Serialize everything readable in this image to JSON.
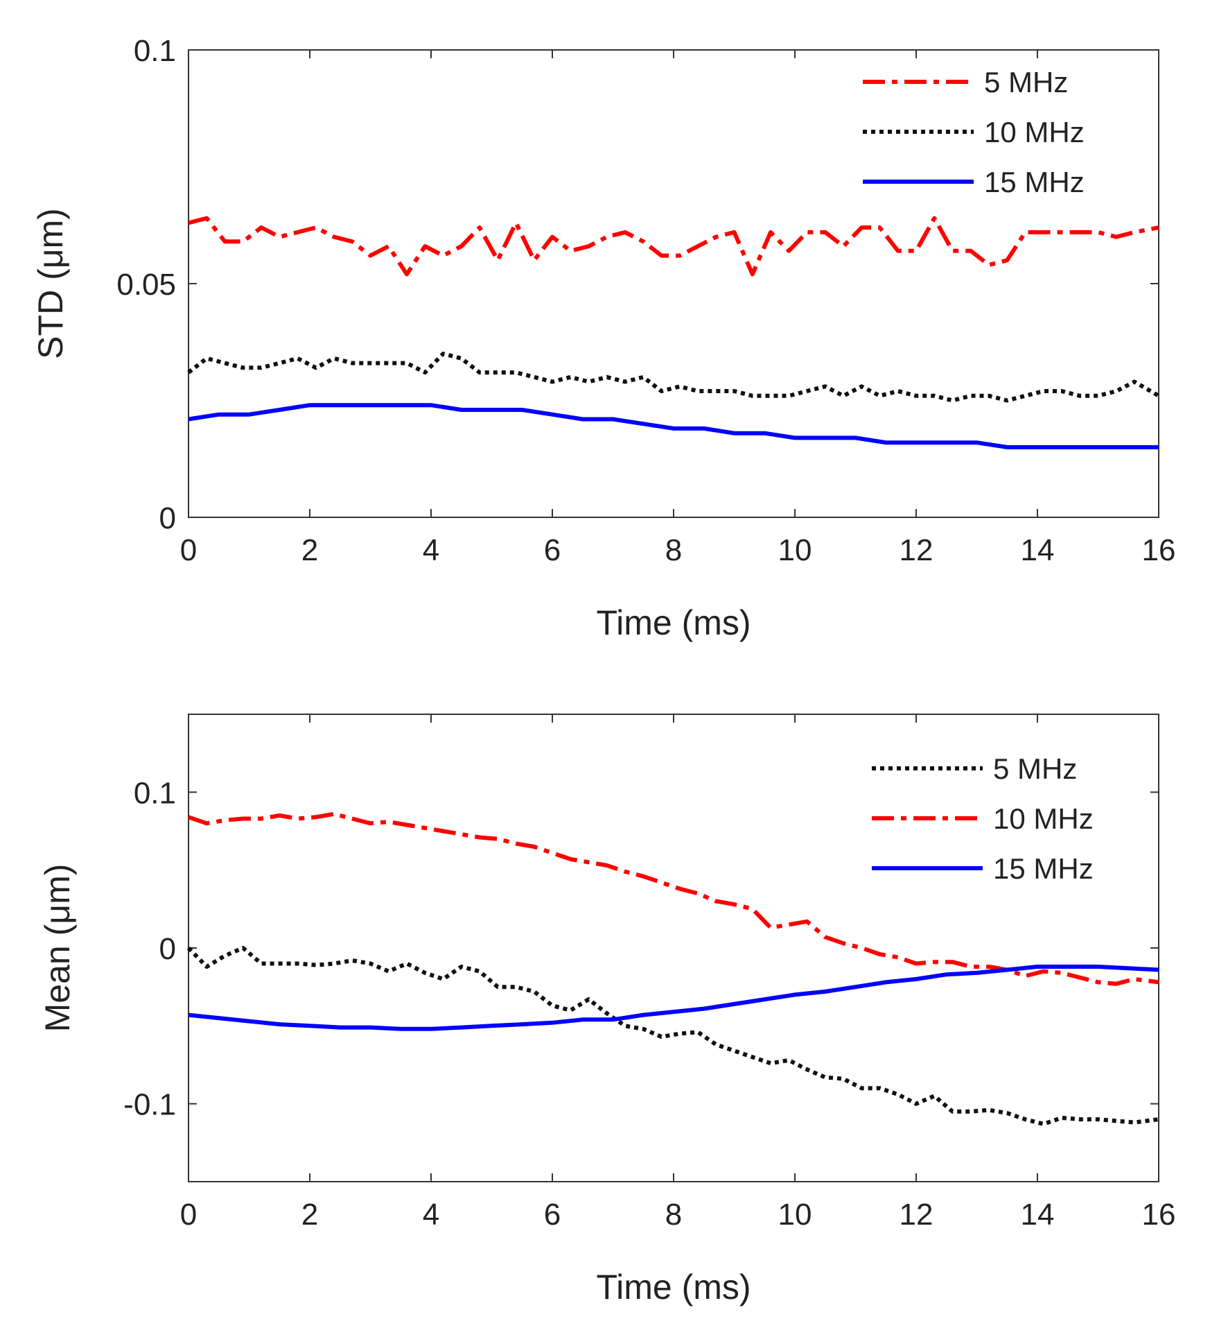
{
  "chart_data": [
    {
      "type": "line",
      "xlabel": "Time (ms)",
      "ylabel": "STD (μm)",
      "xlim": [
        0,
        16
      ],
      "ylim": [
        0,
        0.1
      ],
      "xticks": [
        "0",
        "2",
        "4",
        "6",
        "8",
        "10",
        "12",
        "14",
        "16"
      ],
      "yticks": [
        "0",
        "0.05",
        "0.1"
      ],
      "legend_position": "top-right",
      "series": [
        {
          "name": "5 MHz",
          "color": "#ff0000",
          "style": "dash-dot",
          "x": [
            0,
            0.3,
            0.6,
            0.9,
            1.2,
            1.5,
            1.8,
            2.1,
            2.4,
            2.7,
            3.0,
            3.3,
            3.6,
            3.9,
            4.2,
            4.5,
            4.8,
            5.1,
            5.4,
            5.7,
            6.0,
            6.3,
            6.6,
            6.9,
            7.2,
            7.5,
            7.8,
            8.1,
            8.4,
            8.7,
            9.0,
            9.3,
            9.6,
            9.9,
            10.2,
            10.5,
            10.8,
            11.1,
            11.4,
            11.7,
            12.0,
            12.3,
            12.6,
            12.9,
            13.2,
            13.5,
            13.8,
            14.1,
            14.4,
            14.7,
            15.0,
            15.3,
            15.6,
            16.0
          ],
          "y": [
            0.063,
            0.064,
            0.059,
            0.059,
            0.062,
            0.06,
            0.061,
            0.062,
            0.06,
            0.059,
            0.056,
            0.058,
            0.052,
            0.058,
            0.056,
            0.058,
            0.062,
            0.055,
            0.063,
            0.055,
            0.06,
            0.057,
            0.058,
            0.06,
            0.061,
            0.059,
            0.056,
            0.056,
            0.058,
            0.06,
            0.061,
            0.052,
            0.061,
            0.057,
            0.061,
            0.061,
            0.058,
            0.062,
            0.062,
            0.057,
            0.057,
            0.064,
            0.057,
            0.057,
            0.054,
            0.055,
            0.061,
            0.061,
            0.061,
            0.061,
            0.061,
            0.06,
            0.061,
            0.062
          ]
        },
        {
          "name": "10 MHz",
          "color": "#111111",
          "style": "dotted",
          "x": [
            0,
            0.3,
            0.6,
            0.9,
            1.2,
            1.5,
            1.8,
            2.1,
            2.4,
            2.7,
            3.0,
            3.3,
            3.6,
            3.9,
            4.2,
            4.5,
            4.8,
            5.1,
            5.4,
            5.7,
            6.0,
            6.3,
            6.6,
            6.9,
            7.2,
            7.5,
            7.8,
            8.1,
            8.4,
            8.7,
            9.0,
            9.3,
            9.6,
            9.9,
            10.2,
            10.5,
            10.8,
            11.1,
            11.4,
            11.7,
            12.0,
            12.3,
            12.6,
            12.9,
            13.2,
            13.5,
            13.8,
            14.1,
            14.4,
            14.7,
            15.0,
            15.3,
            15.6,
            16.0
          ],
          "y": [
            0.031,
            0.034,
            0.033,
            0.032,
            0.032,
            0.033,
            0.034,
            0.032,
            0.034,
            0.033,
            0.033,
            0.033,
            0.033,
            0.031,
            0.035,
            0.034,
            0.031,
            0.031,
            0.031,
            0.03,
            0.029,
            0.03,
            0.029,
            0.03,
            0.029,
            0.03,
            0.027,
            0.028,
            0.027,
            0.027,
            0.027,
            0.026,
            0.026,
            0.026,
            0.027,
            0.028,
            0.026,
            0.028,
            0.026,
            0.027,
            0.026,
            0.026,
            0.025,
            0.026,
            0.026,
            0.025,
            0.026,
            0.027,
            0.027,
            0.026,
            0.026,
            0.027,
            0.029,
            0.026
          ]
        },
        {
          "name": "15 MHz",
          "color": "#0000ff",
          "style": "solid",
          "x": [
            0,
            0.5,
            1.0,
            1.5,
            2.0,
            2.5,
            3.0,
            3.5,
            4.0,
            4.5,
            5.0,
            5.5,
            6.0,
            6.5,
            7.0,
            7.5,
            8.0,
            8.5,
            9.0,
            9.5,
            10.0,
            10.5,
            11.0,
            11.5,
            12.0,
            12.5,
            13.0,
            13.5,
            14.0,
            14.5,
            15.0,
            15.5,
            16.0
          ],
          "y": [
            0.021,
            0.022,
            0.022,
            0.023,
            0.024,
            0.024,
            0.024,
            0.024,
            0.024,
            0.023,
            0.023,
            0.023,
            0.022,
            0.021,
            0.021,
            0.02,
            0.019,
            0.019,
            0.018,
            0.018,
            0.017,
            0.017,
            0.017,
            0.016,
            0.016,
            0.016,
            0.016,
            0.015,
            0.015,
            0.015,
            0.015,
            0.015,
            0.015
          ]
        }
      ]
    },
    {
      "type": "line",
      "xlabel": "Time (ms)",
      "ylabel": "Mean (μm)",
      "xlim": [
        0,
        16
      ],
      "ylim": [
        -0.15,
        0.15
      ],
      "xticks": [
        "0",
        "2",
        "4",
        "6",
        "8",
        "10",
        "12",
        "14",
        "16"
      ],
      "yticks": [
        "-0.1",
        "0",
        "0.1"
      ],
      "legend_position": "top-right",
      "series": [
        {
          "name": "5 MHz",
          "color": "#111111",
          "style": "dotted",
          "x": [
            0,
            0.3,
            0.6,
            0.9,
            1.2,
            1.5,
            1.8,
            2.1,
            2.4,
            2.7,
            3.0,
            3.3,
            3.6,
            3.9,
            4.2,
            4.5,
            4.8,
            5.1,
            5.4,
            5.7,
            6.0,
            6.3,
            6.6,
            6.9,
            7.2,
            7.5,
            7.8,
            8.1,
            8.4,
            8.7,
            9.0,
            9.3,
            9.6,
            9.9,
            10.2,
            10.5,
            10.8,
            11.1,
            11.4,
            11.7,
            12.0,
            12.3,
            12.6,
            12.9,
            13.2,
            13.5,
            13.8,
            14.1,
            14.4,
            14.7,
            15.0,
            15.3,
            15.6,
            16.0
          ],
          "y": [
            0.0,
            -0.012,
            -0.005,
            0.0,
            -0.01,
            -0.01,
            -0.01,
            -0.011,
            -0.01,
            -0.008,
            -0.01,
            -0.015,
            -0.01,
            -0.016,
            -0.02,
            -0.012,
            -0.015,
            -0.025,
            -0.025,
            -0.028,
            -0.037,
            -0.04,
            -0.033,
            -0.042,
            -0.05,
            -0.052,
            -0.057,
            -0.055,
            -0.054,
            -0.062,
            -0.066,
            -0.07,
            -0.074,
            -0.072,
            -0.078,
            -0.083,
            -0.084,
            -0.09,
            -0.09,
            -0.094,
            -0.1,
            -0.095,
            -0.105,
            -0.105,
            -0.104,
            -0.106,
            -0.11,
            -0.113,
            -0.109,
            -0.11,
            -0.11,
            -0.111,
            -0.112,
            -0.11
          ]
        },
        {
          "name": "10 MHz",
          "color": "#ff0000",
          "style": "dash-dot",
          "x": [
            0,
            0.3,
            0.6,
            0.9,
            1.2,
            1.5,
            1.8,
            2.1,
            2.4,
            2.7,
            3.0,
            3.3,
            3.6,
            3.9,
            4.2,
            4.5,
            4.8,
            5.1,
            5.4,
            5.7,
            6.0,
            6.3,
            6.6,
            6.9,
            7.2,
            7.5,
            7.8,
            8.1,
            8.4,
            8.7,
            9.0,
            9.3,
            9.6,
            9.9,
            10.2,
            10.5,
            10.8,
            11.1,
            11.4,
            11.7,
            12.0,
            12.3,
            12.6,
            12.9,
            13.2,
            13.5,
            13.8,
            14.1,
            14.4,
            14.7,
            15.0,
            15.3,
            15.6,
            16.0
          ],
          "y": [
            0.084,
            0.08,
            0.082,
            0.083,
            0.083,
            0.085,
            0.083,
            0.084,
            0.086,
            0.083,
            0.08,
            0.081,
            0.079,
            0.077,
            0.075,
            0.073,
            0.071,
            0.07,
            0.067,
            0.065,
            0.061,
            0.057,
            0.055,
            0.053,
            0.049,
            0.046,
            0.042,
            0.038,
            0.035,
            0.03,
            0.028,
            0.025,
            0.013,
            0.015,
            0.017,
            0.007,
            0.003,
            0.0,
            -0.004,
            -0.006,
            -0.01,
            -0.009,
            -0.009,
            -0.012,
            -0.012,
            -0.014,
            -0.018,
            -0.015,
            -0.016,
            -0.019,
            -0.022,
            -0.023,
            -0.02,
            -0.022
          ]
        },
        {
          "name": "15 MHz",
          "color": "#0000ff",
          "style": "solid",
          "x": [
            0,
            0.5,
            1.0,
            1.5,
            2.0,
            2.5,
            3.0,
            3.5,
            4.0,
            4.5,
            5.0,
            5.5,
            6.0,
            6.5,
            7.0,
            7.5,
            8.0,
            8.5,
            9.0,
            9.5,
            10.0,
            10.5,
            11.0,
            11.5,
            12.0,
            12.5,
            13.0,
            13.5,
            14.0,
            14.5,
            15.0,
            15.5,
            16.0
          ],
          "y": [
            -0.043,
            -0.045,
            -0.047,
            -0.049,
            -0.05,
            -0.051,
            -0.051,
            -0.052,
            -0.052,
            -0.051,
            -0.05,
            -0.049,
            -0.048,
            -0.046,
            -0.046,
            -0.043,
            -0.041,
            -0.039,
            -0.036,
            -0.033,
            -0.03,
            -0.028,
            -0.025,
            -0.022,
            -0.02,
            -0.017,
            -0.016,
            -0.014,
            -0.012,
            -0.012,
            -0.012,
            -0.013,
            -0.014
          ]
        }
      ]
    }
  ]
}
